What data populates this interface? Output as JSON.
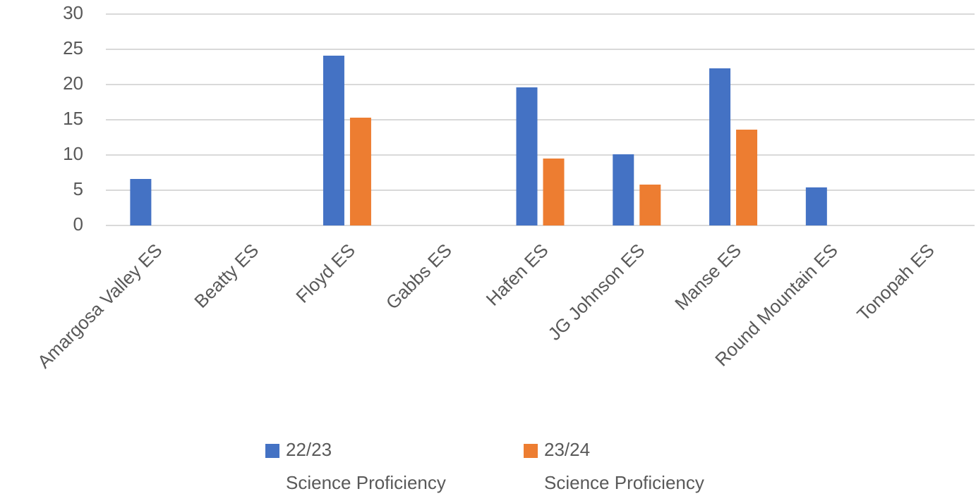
{
  "chart_data": {
    "type": "bar",
    "categories": [
      "Amargosa Valley ES",
      "Beatty ES",
      "Floyd ES",
      "Gabbs ES",
      "Hafen ES",
      "JG Johnson ES",
      "Manse ES",
      "Round Mountain ES",
      "Tonopah ES"
    ],
    "series": [
      {
        "name": "22/23 Science Proficiency",
        "color": "#4472c4",
        "values": [
          6.6,
          null,
          24.1,
          null,
          19.6,
          10.1,
          22.3,
          5.4,
          null
        ]
      },
      {
        "name": "23/24 Science Proficiency",
        "color": "#ed7d31",
        "values": [
          null,
          null,
          15.3,
          null,
          9.5,
          5.8,
          13.6,
          null,
          null
        ]
      }
    ],
    "ylim": [
      0,
      30
    ],
    "yticks": [
      0,
      5,
      10,
      15,
      20,
      25,
      30
    ],
    "grid": true,
    "legend": "bottom"
  }
}
